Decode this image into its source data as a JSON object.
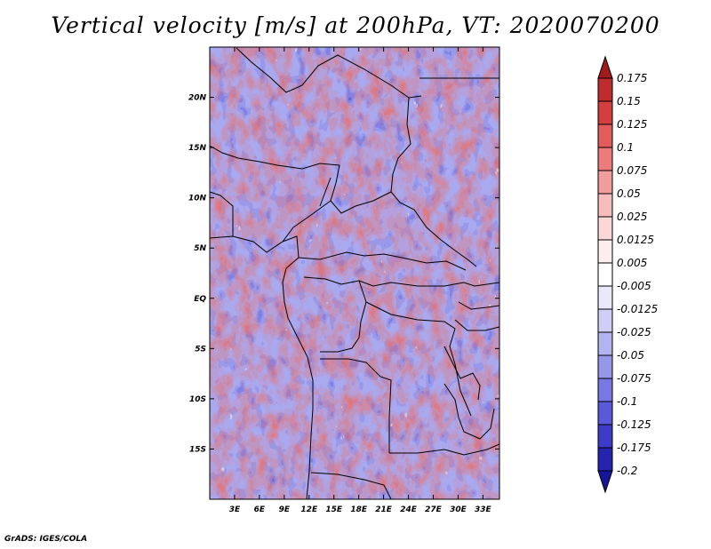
{
  "title": "Vertical velocity [m/s] at 200hPa, VT: 2020070200",
  "credit": "GrADS: IGES/COLA",
  "chart_data": {
    "type": "heatmap",
    "title": "Vertical velocity [m/s] at 200hPa, VT: 2020070200",
    "variable": "Vertical velocity",
    "units": "m/s",
    "level": "200hPa",
    "valid_time": "2020070200",
    "lon_range": [
      0,
      35
    ],
    "lat_range": [
      -20,
      25
    ],
    "x_ticks": [
      "3E",
      "6E",
      "9E",
      "12E",
      "15E",
      "18E",
      "21E",
      "24E",
      "27E",
      "30E",
      "33E"
    ],
    "x_tick_values": [
      3,
      6,
      9,
      12,
      15,
      18,
      21,
      24,
      27,
      30,
      33
    ],
    "y_ticks": [
      "20N",
      "15N",
      "10N",
      "5N",
      "EQ",
      "5S",
      "10S",
      "15S"
    ],
    "y_tick_values": [
      20,
      15,
      10,
      5,
      0,
      -5,
      -10,
      -15
    ],
    "colorbar": {
      "labels": [
        "0.175",
        "0.15",
        "0.125",
        "0.1",
        "0.075",
        "0.05",
        "0.025",
        "0.0125",
        "0.005",
        "-0.005",
        "-0.0125",
        "-0.025",
        "-0.05",
        "-0.075",
        "-0.1",
        "-0.125",
        "-0.175",
        "-0.2"
      ],
      "colors": [
        "#a01c1c",
        "#be2d2d",
        "#d43e3e",
        "#e35c5c",
        "#ec7c7c",
        "#f29d9d",
        "#f7bdbd",
        "#fbd8d8",
        "#fdeeee",
        "#ffffff",
        "#e9e9fb",
        "#cfcff6",
        "#b3b3f0",
        "#9797ea",
        "#7878e3",
        "#5959d9",
        "#3c3cc8",
        "#2424ae",
        "#16169a"
      ],
      "top_arrow_color": "#a01c1c",
      "bottom_arrow_color": "#16169a"
    }
  }
}
